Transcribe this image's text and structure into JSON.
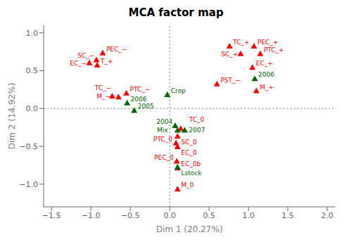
{
  "chart_data": {
    "type": "scatter",
    "title": "MCA factor map",
    "x_label": "Dim 1 (20.27%)",
    "y_label": "Dim 2 (14.92%)",
    "xlim": [
      -1.6,
      2.1
    ],
    "ylim": [
      -1.3,
      1.1
    ],
    "xticks": [
      {
        "value": -1.5,
        "label": "−1.5"
      },
      {
        "value": -1.0,
        "label": "−1.0"
      },
      {
        "value": -0.5,
        "label": "−0.5"
      },
      {
        "value": 0.0,
        "label": "0.0"
      },
      0.5,
      {
        "value": 1.0,
        "label": "1.0"
      },
      1.5,
      {
        "value": 2.0,
        "label": "2.0"
      }
    ],
    "yticks": [
      {
        "value": -1.0,
        "label": "−1.0"
      },
      {
        "value": -0.5,
        "label": "−0.5"
      },
      {
        "value": 0.0,
        "label": "0.0"
      },
      0.5,
      {
        "value": 1.0,
        "label": "1.0"
      }
    ],
    "grid": false,
    "hlines": [
      0
    ],
    "vlines": [
      0
    ],
    "series": [
      {
        "color": "#FF0000",
        "marker": "triangle",
        "x": [
          -0.85,
          -0.93,
          -1.02,
          -0.92,
          -0.55,
          -0.65,
          -0.73,
          0.76,
          1.07,
          0.9,
          1.15,
          1.05,
          0.6,
          1.1,
          0.14,
          0.1,
          0.08,
          0.1,
          0.09,
          0.1,
          0.1
        ],
        "y": [
          0.73,
          0.64,
          0.6,
          0.57,
          0.2,
          0.15,
          0.16,
          0.82,
          0.82,
          0.72,
          0.72,
          0.54,
          0.32,
          0.23,
          -0.27,
          -0.37,
          -0.46,
          -0.51,
          -0.7,
          -0.79,
          -1.07
        ],
        "labels": [
          "PEC_−",
          "SC_−",
          "EC_−",
          "T_+",
          "PTC_−",
          "TC_−",
          "M_−",
          "TC_+",
          "PEC_+",
          "SC_+",
          "PTC_+",
          "EC_+",
          "PST_−",
          "M_+",
          "TC_0",
          "SC_0",
          "PTC_0",
          "EC_0",
          "PEC_0",
          "EC_0b",
          "M_0"
        ]
      },
      {
        "color": "#006400",
        "marker": "triangle",
        "x": [
          -0.03,
          -0.54,
          -0.45,
          0.07,
          0.1,
          0.19,
          1.08,
          0.1
        ],
        "y": [
          0.18,
          0.07,
          -0.03,
          -0.23,
          -0.29,
          -0.29,
          0.39,
          -0.78
        ],
        "labels": [
          "Crop",
          "2006",
          "2005",
          "2004",
          "Mix",
          "2007",
          "2006",
          "Lstock"
        ]
      }
    ]
  }
}
